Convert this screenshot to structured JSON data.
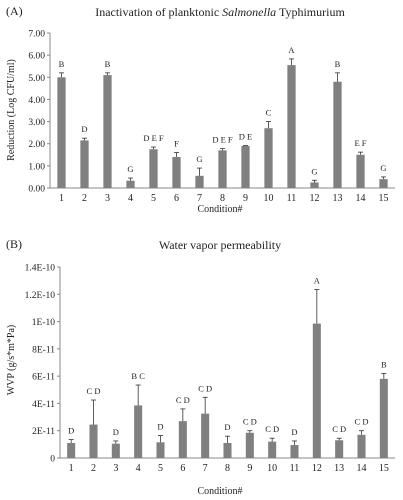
{
  "chart_data": [
    {
      "type": "bar",
      "panel_label": "(A)",
      "title": "Inactivation of planktonic",
      "title_italic": "Salmonella",
      "title_suffix": "Typhimurium",
      "xlabel": "Condition#",
      "ylabel": "Reduction (Log CFU/ml)",
      "ylim": [
        0,
        7
      ],
      "y_ticks": [
        "0.00",
        "1.00",
        "2.00",
        "3.00",
        "4.00",
        "5.00",
        "6.00",
        "7.00"
      ],
      "categories": [
        "1",
        "2",
        "3",
        "4",
        "5",
        "6",
        "7",
        "8",
        "9",
        "10",
        "11",
        "12",
        "13",
        "14",
        "15"
      ],
      "values": [
        5.0,
        2.15,
        5.1,
        0.33,
        1.75,
        1.4,
        0.55,
        1.7,
        1.9,
        2.7,
        5.55,
        0.25,
        4.8,
        1.5,
        0.4
      ],
      "errors": [
        0.2,
        0.1,
        0.1,
        0.12,
        0.1,
        0.2,
        0.35,
        0.08,
        0.02,
        0.3,
        0.28,
        0.1,
        0.4,
        0.12,
        0.1
      ],
      "letters": [
        "B",
        "D",
        "B",
        "G",
        "D E F",
        "F",
        "G",
        "D E F",
        "D E",
        "C",
        "A",
        "G",
        "B",
        "E F",
        "G"
      ],
      "grid": false,
      "bar_color": "#808080"
    },
    {
      "type": "bar",
      "panel_label": "(B)",
      "title": "Water vapor permeability",
      "xlabel": "Condition#",
      "ylabel": "WVP (g/s*m*Pa)",
      "ylim": [
        0,
        1.4e-10
      ],
      "y_ticks": [
        "0",
        "2E-11",
        "4E-11",
        "6E-11",
        "8E-11",
        "1E-10",
        "1.2E-10",
        "1.4E-10"
      ],
      "categories": [
        "1",
        "2",
        "3",
        "4",
        "5",
        "6",
        "7",
        "8",
        "9",
        "10",
        "11",
        "12",
        "13",
        "14",
        "15"
      ],
      "values": [
        1.1e-11,
        2.45e-11,
        1.05e-11,
        3.85e-11,
        1.15e-11,
        2.7e-11,
        3.25e-11,
        1.1e-11,
        1.85e-11,
        1.2e-11,
        9.5e-12,
        9.85e-11,
        1.3e-11,
        1.7e-11,
        5.8e-11
      ],
      "errors": [
        2.5e-12,
        1.8e-11,
        2e-12,
        1.5e-11,
        5e-12,
        9e-12,
        1.2e-11,
        5e-12,
        1.5e-12,
        2.5e-12,
        3e-12,
        2.5e-11,
        1.5e-12,
        3e-12,
        4e-12
      ],
      "letters": [
        "D",
        "C D",
        "D",
        "B C",
        "D",
        "C D",
        "C D",
        "D",
        "C D",
        "C D",
        "D",
        "A",
        "C D",
        "C D",
        "B"
      ],
      "grid": false,
      "bar_color": "#808080"
    }
  ]
}
